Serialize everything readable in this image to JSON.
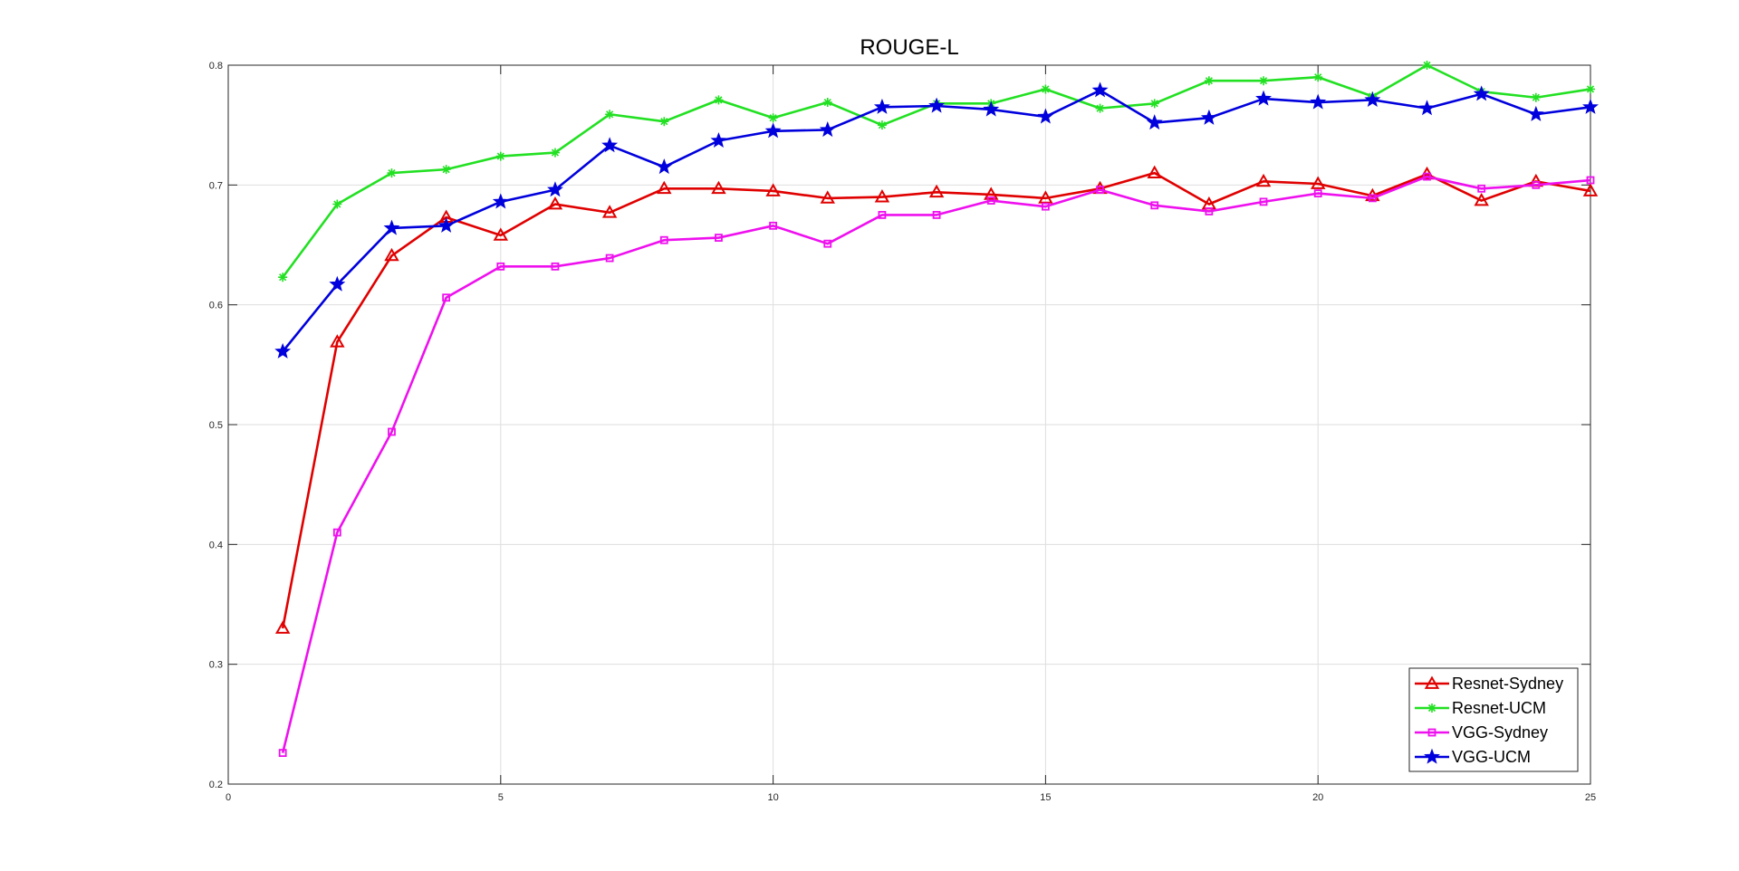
{
  "chart_data": {
    "type": "line",
    "title": "ROUGE-L",
    "xlabel": "",
    "ylabel": "",
    "xlim": [
      0,
      25
    ],
    "ylim": [
      0.2,
      0.8
    ],
    "xticks": [
      0,
      5,
      10,
      15,
      20,
      25
    ],
    "yticks": [
      0.2,
      0.3,
      0.4,
      0.5,
      0.6,
      0.7,
      0.8
    ],
    "xtick_labels": [
      "0",
      "5",
      "10",
      "15",
      "20",
      "25"
    ],
    "ytick_labels": [
      "0.2",
      "0.3",
      "0.4",
      "0.5",
      "0.6",
      "0.7",
      "0.8"
    ],
    "grid": true,
    "legend_position": "bottom-right",
    "x": [
      1,
      2,
      3,
      4,
      5,
      6,
      7,
      8,
      9,
      10,
      11,
      12,
      13,
      14,
      15,
      16,
      17,
      18,
      19,
      20,
      21,
      22,
      23,
      24,
      25
    ],
    "series": [
      {
        "name": "Resnet-Sydney",
        "color": "#e00000",
        "marker": "triangle",
        "values": [
          0.33,
          0.569,
          0.641,
          0.673,
          0.658,
          0.684,
          0.677,
          0.697,
          0.697,
          0.695,
          0.689,
          0.69,
          0.694,
          0.692,
          0.689,
          0.697,
          0.71,
          0.684,
          0.703,
          0.701,
          0.691,
          0.709,
          0.687,
          0.703,
          0.695
        ]
      },
      {
        "name": "Resnet-UCM",
        "color": "#22e022",
        "marker": "plus",
        "values": [
          0.623,
          0.684,
          0.71,
          0.713,
          0.724,
          0.727,
          0.759,
          0.753,
          0.771,
          0.756,
          0.769,
          0.75,
          0.768,
          0.768,
          0.78,
          0.764,
          0.768,
          0.787,
          0.787,
          0.79,
          0.774,
          0.8,
          0.778,
          0.773,
          0.78
        ]
      },
      {
        "name": "VGG-Sydney",
        "color": "#ee10ee",
        "marker": "square",
        "values": [
          0.226,
          0.41,
          0.494,
          0.606,
          0.632,
          0.632,
          0.639,
          0.654,
          0.656,
          0.666,
          0.651,
          0.675,
          0.675,
          0.687,
          0.682,
          0.696,
          0.683,
          0.678,
          0.686,
          0.693,
          0.689,
          0.707,
          0.697,
          0.7,
          0.704
        ]
      },
      {
        "name": "VGG-UCM",
        "color": "#0000dd",
        "marker": "star",
        "values": [
          0.561,
          0.617,
          0.664,
          0.666,
          0.686,
          0.696,
          0.733,
          0.715,
          0.737,
          0.745,
          0.746,
          0.765,
          0.766,
          0.763,
          0.757,
          0.779,
          0.752,
          0.756,
          0.772,
          0.769,
          0.771,
          0.764,
          0.776,
          0.759,
          0.765
        ]
      }
    ]
  }
}
